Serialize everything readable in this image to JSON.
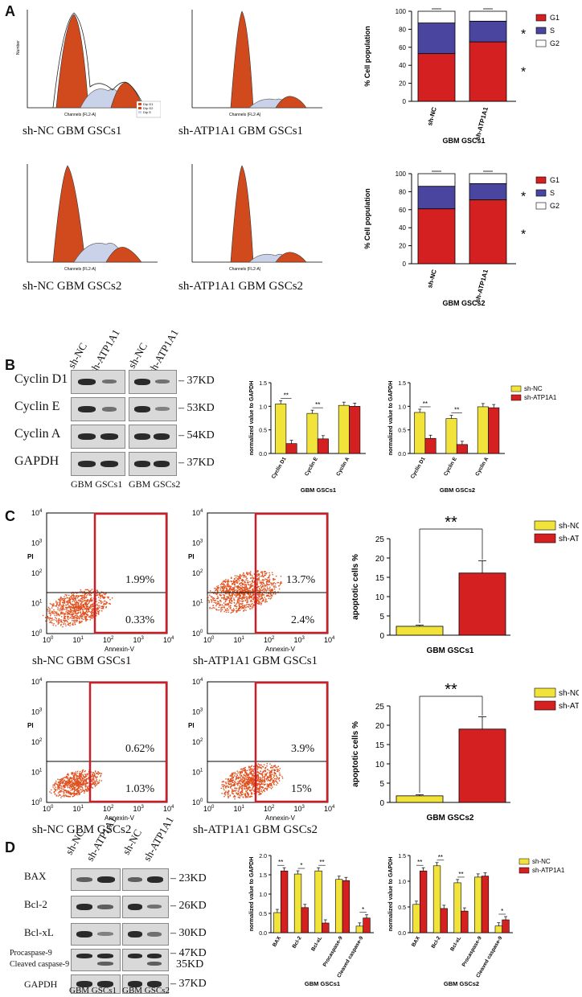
{
  "panels": {
    "a": "A",
    "b": "B",
    "c": "C",
    "d": "D"
  },
  "panelA": {
    "captions": [
      "sh-NC GBM GSCs1",
      "sh-ATP1A1 GBM GSCs1",
      "sh-NC GBM GSCs2",
      "sh-ATP1A1 GBM GSCs2"
    ],
    "histogram_xlabel": "Channels (FL2-A)",
    "histogram_ylabel": "Number",
    "histogram_legend": [
      "Dip G1",
      "Dip G2",
      "Dip S"
    ],
    "star": "*"
  },
  "panelB": {
    "lanes": [
      "sh-NC",
      "sh-ATP1A1"
    ],
    "proteins": [
      "Cyclin D1",
      "Cyclin E",
      "Cyclin A",
      "GAPDH"
    ],
    "kd": [
      "37KD",
      "53KD",
      "54KD",
      "37KD"
    ],
    "groups": [
      "GBM GSCs1",
      "GBM GSCs2"
    ],
    "sig": "**"
  },
  "panelC": {
    "captions": [
      "sh-NC GBM GSCs1",
      "sh-ATP1A1 GBM GSCs1",
      "sh-NC GBM GSCs2",
      "sh-ATP1A1 GBM GSCs2"
    ],
    "percents": [
      [
        "1.99%",
        "0.33%"
      ],
      [
        "13.7%",
        "2.4%"
      ],
      [
        "0.62%",
        "1.03%"
      ],
      [
        "3.9%",
        "15%"
      ]
    ],
    "xaxis": "Annexin-V",
    "yaxis": "PI",
    "ticks": [
      "10",
      "0",
      "1",
      "2",
      "3",
      "4"
    ],
    "sig": "**"
  },
  "panelD": {
    "lanes": [
      "sh-NC",
      "sh-ATP1A1"
    ],
    "proteins": [
      "BAX",
      "Bcl-2",
      "Bcl-xL",
      "Procaspase-9",
      "Cleaved caspase-9",
      "GAPDH"
    ],
    "kd": [
      "23KD",
      "26KD",
      "30KD",
      "47KD",
      "35KD",
      "37KD"
    ],
    "groups": [
      "GBM GSCs1",
      "GBM GSCs2"
    ],
    "sig": [
      "**",
      "*"
    ]
  },
  "chart_data": [
    {
      "type": "bar",
      "stacked": true,
      "categories": [
        "sh-NC",
        "sh-ATP1A1"
      ],
      "series": [
        {
          "name": "G1",
          "values": [
            53,
            66
          ]
        },
        {
          "name": "S",
          "values": [
            34,
            23
          ]
        },
        {
          "name": "G2",
          "values": [
            13,
            11
          ]
        }
      ],
      "title": "",
      "xlabel": "GBM GSCs1",
      "ylabel": "% Cell population",
      "ylim": [
        0,
        100
      ],
      "yticks": [
        "0",
        "20",
        "40",
        "60",
        "80",
        "100"
      ],
      "colors": [
        "#d42020",
        "#4a46a0",
        "#ffffff"
      ]
    },
    {
      "type": "bar",
      "stacked": true,
      "categories": [
        "sh-NC",
        "sh-ATP1A1"
      ],
      "series": [
        {
          "name": "G1",
          "values": [
            61,
            71
          ]
        },
        {
          "name": "S",
          "values": [
            25,
            18
          ]
        },
        {
          "name": "G2",
          "values": [
            14,
            11
          ]
        }
      ],
      "title": "",
      "xlabel": "GBM GSCs2",
      "ylabel": "% Cell population",
      "ylim": [
        0,
        100
      ],
      "yticks": [
        "0",
        "20",
        "40",
        "60",
        "80",
        "100"
      ],
      "colors": [
        "#d42020",
        "#4a46a0",
        "#ffffff"
      ]
    },
    {
      "type": "bar",
      "categories": [
        "Cyclin D1",
        "Cyclin E",
        "Cyclin A"
      ],
      "series": [
        {
          "name": "sh-NC",
          "values": [
            1.05,
            0.85,
            1.02
          ]
        },
        {
          "name": "sh-ATP1A1",
          "values": [
            0.21,
            0.31,
            1.0
          ]
        }
      ],
      "xlabel": "GBM GSCs1",
      "ylabel": "normalized value to GAPDH",
      "ylim": [
        0,
        1.5
      ],
      "yticks": [
        "0.0",
        "0.5",
        "1.0",
        "1.5"
      ],
      "sig": [
        "**",
        "**",
        ""
      ]
    },
    {
      "type": "bar",
      "categories": [
        "Cyclin D1",
        "Cyclin E",
        "Cyclin A"
      ],
      "series": [
        {
          "name": "sh-NC",
          "values": [
            0.87,
            0.74,
            0.99
          ]
        },
        {
          "name": "sh-ATP1A1",
          "values": [
            0.32,
            0.19,
            0.97
          ]
        }
      ],
      "xlabel": "GBM GSCs2",
      "ylabel": "normalized value to GAPDH",
      "ylim": [
        0,
        1.5
      ],
      "yticks": [
        "0.0",
        "0.5",
        "1.0",
        "1.5"
      ],
      "sig": [
        "**",
        "**",
        ""
      ],
      "legend": [
        "sh-NC",
        "sh-ATP1A1"
      ]
    },
    {
      "type": "bar",
      "categories": [
        "sh-NC",
        "sh-ATP1A1"
      ],
      "values": [
        2.3,
        16.1
      ],
      "xlabel": "GBM GSCs1",
      "ylabel": "apoptotic cells %",
      "ylim": [
        0,
        25
      ],
      "yticks": [
        "0",
        "5",
        "10",
        "15",
        "20",
        "25"
      ],
      "legend": [
        "sh-NC",
        "sh-ATP1A1"
      ]
    },
    {
      "type": "bar",
      "categories": [
        "sh-NC",
        "sh-ATP1A1"
      ],
      "values": [
        1.7,
        19.0
      ],
      "xlabel": "GBM GSCs2",
      "ylabel": "apoptotic cells %",
      "ylim": [
        0,
        25
      ],
      "yticks": [
        "0",
        "5",
        "10",
        "15",
        "20",
        "25"
      ],
      "legend": [
        "sh-NC",
        "sh-ATP1A1"
      ]
    },
    {
      "type": "bar",
      "categories": [
        "BAX",
        "Bcl-2",
        "Bcl-xL",
        "Procaspase-9",
        "Cleaved caspase-9"
      ],
      "series": [
        {
          "name": "sh-NC",
          "values": [
            0.52,
            1.52,
            1.6,
            1.38,
            0.17
          ]
        },
        {
          "name": "sh-ATP1A1",
          "values": [
            1.6,
            0.65,
            0.25,
            1.35,
            0.38
          ]
        }
      ],
      "xlabel": "GBM GSCs1",
      "ylabel": "normalized value to GAPDH",
      "ylim": [
        0,
        2.0
      ],
      "yticks": [
        "0.0",
        "0.5",
        "1.0",
        "1.5",
        "2.0"
      ],
      "sig": [
        "**",
        "*",
        "**",
        "",
        "*"
      ]
    },
    {
      "type": "bar",
      "categories": [
        "BAX",
        "Bcl-2",
        "Bcl-xL",
        "Procaspase-9",
        "Cleaved caspase-9"
      ],
      "series": [
        {
          "name": "sh-NC",
          "values": [
            0.55,
            1.3,
            0.97,
            1.08,
            0.13
          ]
        },
        {
          "name": "sh-ATP1A1",
          "values": [
            1.2,
            0.47,
            0.42,
            1.1,
            0.25
          ]
        }
      ],
      "xlabel": "GBM GSCs2",
      "ylabel": "normalized value to GAPDH",
      "ylim": [
        0,
        1.5
      ],
      "yticks": [
        "0.0",
        "0.5",
        "1.0",
        "1.5"
      ],
      "sig": [
        "**",
        "**",
        "**",
        "",
        "*"
      ],
      "legend": [
        "sh-NC",
        "sh-ATP1A1"
      ]
    }
  ]
}
